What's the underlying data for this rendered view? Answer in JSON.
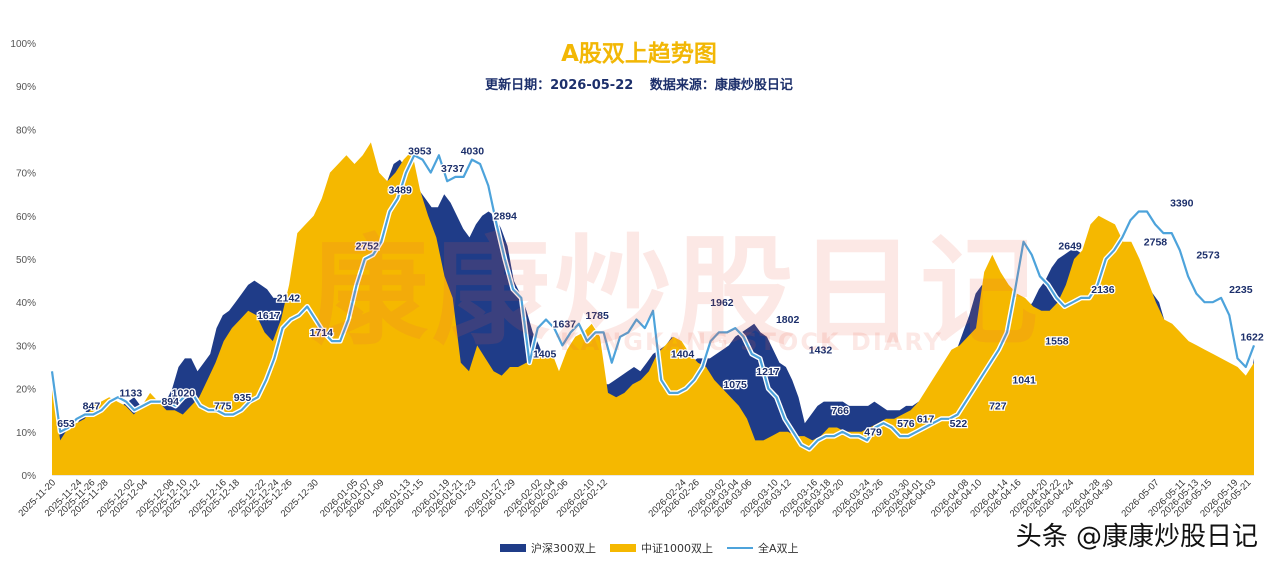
{
  "header": {
    "title": "A股双上趋势图",
    "update_label": "更新日期：2026-05-22",
    "source_label": "数据来源：康康炒股日记"
  },
  "watermark": {
    "main": "康康炒股日记",
    "sub": "KANGKANG STOCK DIARY"
  },
  "signature": "头条 @康康炒股日记",
  "colors": {
    "hs300": "#1f3c88",
    "zz1000": "#f5b800",
    "all": "#4da3db",
    "title": "#f2b705",
    "label": "#1c2f6b"
  },
  "chart_data": {
    "type": "area",
    "title": "A股双上趋势图",
    "subtitle": "更新日期：2026-05-22    数据来源：康康炒股日记",
    "y_ticks": [
      "0%",
      "10%",
      "20%",
      "30%",
      "40%",
      "50%",
      "60%",
      "70%",
      "80%",
      "90%",
      "100%"
    ],
    "ylim": [
      0,
      100
    ],
    "x_tick_labels": [
      "2025-11-20",
      "2025-11-24",
      "2025-11-26",
      "2025-11-28",
      "2025-12-02",
      "2025-12-04",
      "2025-12-08",
      "2025-12-10",
      "2025-12-12",
      "2025-12-16",
      "2025-12-18",
      "2025-12-22",
      "2025-12-24",
      "2025-12-26",
      "2025-12-30",
      "2026-01-05",
      "2026-01-07",
      "2026-01-09",
      "2026-01-13",
      "2026-01-15",
      "2026-01-19",
      "2026-01-21",
      "2026-01-23",
      "2026-01-27",
      "2026-01-29",
      "2026-02-02",
      "2026-02-04",
      "2026-02-06",
      "2026-02-10",
      "2026-02-12",
      "2026-02-24",
      "2026-02-26",
      "2026-03-02",
      "2026-03-04",
      "2026-03-06",
      "2026-03-10",
      "2026-03-12",
      "2026-03-16",
      "2026-03-18",
      "2026-03-20",
      "2026-03-24",
      "2026-03-26",
      "2026-03-30",
      "2026-04-01",
      "2026-04-03",
      "2026-04-08",
      "2026-04-10",
      "2026-04-14",
      "2026-04-16",
      "2026-04-20",
      "2026-04-22",
      "2026-04-24",
      "2026-04-28",
      "2026-04-30",
      "2026-05-07",
      "2026-05-11",
      "2026-05-13",
      "2026-05-15",
      "2026-05-19",
      "2026-05-21"
    ],
    "legend": [
      "沪深300双上",
      "中证1000双上",
      "全A双上"
    ],
    "legend_position": "bottom",
    "grid": false,
    "series": [
      {
        "name": "沪深300双上",
        "type": "area",
        "values": [
          20,
          9,
          11,
          12,
          12,
          14,
          16,
          17,
          17,
          16,
          15,
          16,
          17,
          18,
          16,
          15,
          15,
          16,
          17,
          20,
          25,
          27,
          27,
          24,
          26,
          28,
          34,
          37,
          38,
          40,
          42,
          44,
          45,
          44,
          43,
          41,
          41,
          40,
          38,
          36,
          35,
          38,
          42,
          47,
          52,
          54,
          52,
          55,
          56,
          58,
          62,
          64,
          66,
          68,
          72,
          73,
          71,
          69,
          66,
          64,
          62,
          62,
          65,
          63,
          60,
          57,
          55,
          58,
          60,
          61,
          60,
          57,
          53,
          45,
          42,
          38,
          33,
          30,
          26,
          15,
          20,
          21,
          20,
          19,
          20,
          20,
          20,
          21,
          21,
          22,
          23,
          24,
          25,
          24,
          26,
          28,
          29,
          30,
          32,
          30,
          26,
          26,
          27,
          27,
          27,
          28,
          29,
          30,
          32,
          33,
          34,
          35,
          33,
          32,
          29,
          26,
          25,
          22,
          18,
          12,
          14,
          16,
          17,
          17,
          17,
          17,
          16,
          16,
          16,
          16,
          17,
          16,
          15,
          15,
          15,
          16,
          16,
          17,
          17,
          17,
          18,
          22,
          25,
          29,
          33,
          37,
          42,
          44,
          41,
          40,
          40,
          41,
          38,
          37,
          38,
          40,
          43,
          45,
          48,
          50,
          51,
          52,
          52,
          51,
          50,
          49,
          48,
          47,
          48,
          47,
          45,
          44,
          43,
          44,
          42,
          40,
          35,
          28,
          26,
          24,
          22,
          20,
          21,
          22,
          22,
          24,
          25,
          20,
          19,
          18,
          27
        ]
      },
      {
        "name": "中证1000双上",
        "type": "area",
        "values": [
          20,
          8,
          11,
          12,
          13,
          16,
          17,
          18,
          17,
          16,
          14,
          16,
          19,
          17,
          15,
          15,
          14,
          16,
          18,
          22,
          26,
          31,
          34,
          36,
          38,
          37,
          33,
          31,
          36,
          44,
          56,
          58,
          60,
          64,
          70,
          72,
          74,
          72,
          74,
          77,
          70,
          68,
          70,
          73,
          75,
          66,
          60,
          55,
          46,
          41,
          26,
          24,
          30,
          27,
          24,
          23,
          25,
          25,
          26,
          27,
          28,
          29,
          24,
          29,
          32,
          33,
          35,
          32,
          19,
          18,
          19,
          21,
          22,
          24,
          28,
          30,
          32,
          31,
          28,
          26,
          25,
          22,
          20,
          18,
          16,
          13,
          8,
          8,
          9,
          10,
          10,
          9,
          9,
          8,
          9,
          11,
          11,
          10,
          10,
          10,
          11,
          12,
          13,
          13,
          14,
          15,
          17,
          20,
          23,
          26,
          29,
          30,
          32,
          34,
          47,
          51,
          47,
          44,
          42,
          41,
          39,
          38,
          38,
          40,
          44,
          50,
          52,
          58,
          60,
          59,
          58,
          54,
          54,
          50,
          45,
          40,
          36,
          35,
          33,
          31,
          30,
          29,
          28,
          27,
          26,
          25,
          23,
          26
        ]
      },
      {
        "name": "全A双上",
        "type": "line",
        "values": [
          24,
          10,
          11,
          13,
          14,
          14,
          15,
          17,
          18,
          17,
          15,
          16,
          17,
          17,
          17,
          16,
          18,
          19,
          16,
          15,
          15,
          14,
          14,
          15,
          17,
          18,
          22,
          27,
          34,
          36,
          37,
          39,
          36,
          33,
          31,
          31,
          36,
          44,
          50,
          51,
          54,
          61,
          64,
          70,
          74,
          73,
          70,
          74,
          68,
          69,
          69,
          73,
          72,
          67,
          58,
          50,
          43,
          41,
          26,
          34,
          36,
          34,
          30,
          33,
          35,
          31,
          33,
          33,
          26,
          32,
          33,
          36,
          34,
          38,
          22,
          19,
          19,
          20,
          22,
          25,
          31,
          33,
          33,
          34,
          32,
          28,
          27,
          20,
          18,
          13,
          10,
          7,
          6,
          8,
          9,
          9,
          10,
          9,
          9,
          8,
          11,
          12,
          11,
          9,
          9,
          10,
          11,
          12,
          13,
          13,
          14,
          17,
          20,
          23,
          26,
          29,
          33,
          43,
          54,
          51,
          46,
          44,
          41,
          39,
          40,
          41,
          41,
          44,
          50,
          52,
          55,
          59,
          61,
          61,
          58,
          56,
          56,
          52,
          46,
          42,
          40,
          40,
          41,
          37,
          27,
          25,
          30
        ]
      }
    ],
    "data_labels": [
      {
        "text": "653",
        "series": "全A双上",
        "x": "2025-11-21",
        "y": 10
      },
      {
        "text": "847",
        "series": "全A双上",
        "x": "2025-11-26",
        "y": 14
      },
      {
        "text": "1133",
        "series": "全A双上",
        "x": "2025-12-02",
        "y": 17
      },
      {
        "text": "894",
        "series": "全A双上",
        "x": "2025-12-08",
        "y": 15
      },
      {
        "text": "1020",
        "series": "全A双上",
        "x": "2025-12-10",
        "y": 17
      },
      {
        "text": "775",
        "series": "全A双上",
        "x": "2025-12-16",
        "y": 14
      },
      {
        "text": "935",
        "series": "全A双上",
        "x": "2025-12-19",
        "y": 16
      },
      {
        "text": "1617",
        "series": "全A双上",
        "x": "2025-12-23",
        "y": 35
      },
      {
        "text": "2142",
        "series": "全A双上",
        "x": "2025-12-26",
        "y": 39
      },
      {
        "text": "1714",
        "series": "全A双上",
        "x": "2025-12-31",
        "y": 31
      },
      {
        "text": "2752",
        "series": "全A双上",
        "x": "2026-01-07",
        "y": 51
      },
      {
        "text": "3489",
        "series": "全A双上",
        "x": "2026-01-12",
        "y": 64
      },
      {
        "text": "3953",
        "series": "全A双上",
        "x": "2026-01-15",
        "y": 73
      },
      {
        "text": "3737",
        "series": "全A双上",
        "x": "2026-01-20",
        "y": 69
      },
      {
        "text": "4030",
        "series": "全A双上",
        "x": "2026-01-23",
        "y": 73
      },
      {
        "text": "2894",
        "series": "全A双上",
        "x": "2026-01-28",
        "y": 58
      },
      {
        "text": "1405",
        "series": "全A双上",
        "x": "2026-02-03",
        "y": 26
      },
      {
        "text": "1637",
        "series": "全A双上",
        "x": "2026-02-06",
        "y": 33
      },
      {
        "text": "1785",
        "series": "全A双上",
        "x": "2026-02-11",
        "y": 35
      },
      {
        "text": "1404",
        "series": "全A双上",
        "x": "2026-02-24",
        "y": 26
      },
      {
        "text": "1962",
        "series": "全A双上",
        "x": "2026-03-02",
        "y": 38
      },
      {
        "text": "1075",
        "series": "全A双上",
        "x": "2026-03-04",
        "y": 19
      },
      {
        "text": "1217",
        "series": "全A双上",
        "x": "2026-03-09",
        "y": 22
      },
      {
        "text": "1802",
        "series": "全A双上",
        "x": "2026-03-12",
        "y": 34
      },
      {
        "text": "1432",
        "series": "全A双上",
        "x": "2026-03-17",
        "y": 27
      },
      {
        "text": "766",
        "series": "全A双上",
        "x": "2026-03-20",
        "y": 13
      },
      {
        "text": "479",
        "series": "全A双上",
        "x": "2026-03-25",
        "y": 8
      },
      {
        "text": "576",
        "series": "全A双上",
        "x": "2026-03-30",
        "y": 10
      },
      {
        "text": "617",
        "series": "全A双上",
        "x": "2026-04-02",
        "y": 11
      },
      {
        "text": "522",
        "series": "全A双上",
        "x": "2026-04-07",
        "y": 10
      },
      {
        "text": "727",
        "series": "全A双上",
        "x": "2026-04-13",
        "y": 14
      },
      {
        "text": "1041",
        "series": "全A双上",
        "x": "2026-04-17",
        "y": 20
      },
      {
        "text": "1558",
        "series": "全A双上",
        "x": "2026-04-22",
        "y": 29
      },
      {
        "text": "2649",
        "series": "全A双上",
        "x": "2026-04-24",
        "y": 51
      },
      {
        "text": "2136",
        "series": "全A双上",
        "x": "2026-04-29",
        "y": 41
      },
      {
        "text": "2758",
        "series": "全A双上",
        "x": "2026-05-07",
        "y": 52
      },
      {
        "text": "3390",
        "series": "全A双上",
        "x": "2026-05-11",
        "y": 61
      },
      {
        "text": "2573",
        "series": "全A双上",
        "x": "2026-05-15",
        "y": 49
      },
      {
        "text": "2235",
        "series": "全A双上",
        "x": "2026-05-20",
        "y": 41
      },
      {
        "text": "1622",
        "series": "全A双上",
        "x": "2026-05-22",
        "y": 30
      }
    ]
  }
}
